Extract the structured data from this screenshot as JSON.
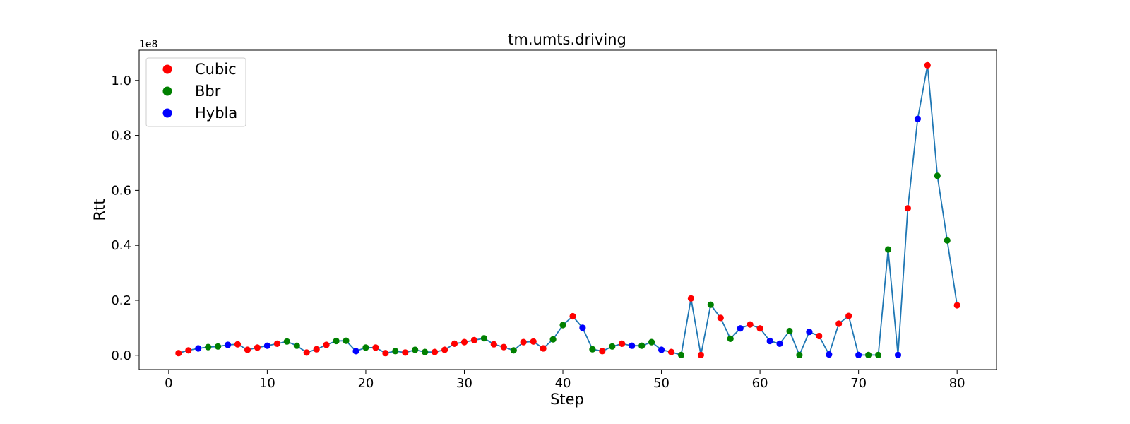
{
  "chart_data": {
    "type": "scatter",
    "title": "tm.umts.driving",
    "xlabel": "Step",
    "ylabel": "Rtt",
    "y_offset_label": "1e8",
    "xlim": [
      -3,
      84
    ],
    "ylim": [
      -0.052,
      1.11
    ],
    "x_ticks": [
      0,
      10,
      20,
      30,
      40,
      50,
      60,
      70,
      80
    ],
    "y_ticks": [
      0.0,
      0.2,
      0.4,
      0.6,
      0.8,
      1.0
    ],
    "y_tick_labels": [
      "0.0",
      "0.2",
      "0.4",
      "0.6",
      "0.8",
      "1.0"
    ],
    "y_unit_multiplier": 100000000,
    "grid": false,
    "legend_position": "top-left",
    "line_color": "#1f77b4",
    "series": [
      {
        "name": "Cubic",
        "color": "#ff0000"
      },
      {
        "name": "Bbr",
        "color": "#008000"
      },
      {
        "name": "Hybla",
        "color": "#0000ff"
      }
    ],
    "points": [
      {
        "x": 1,
        "y": 0.008,
        "s": "Cubic"
      },
      {
        "x": 2,
        "y": 0.018,
        "s": "Cubic"
      },
      {
        "x": 3,
        "y": 0.025,
        "s": "Hybla"
      },
      {
        "x": 4,
        "y": 0.03,
        "s": "Bbr"
      },
      {
        "x": 5,
        "y": 0.032,
        "s": "Bbr"
      },
      {
        "x": 6,
        "y": 0.038,
        "s": "Hybla"
      },
      {
        "x": 7,
        "y": 0.04,
        "s": "Cubic"
      },
      {
        "x": 8,
        "y": 0.02,
        "s": "Cubic"
      },
      {
        "x": 9,
        "y": 0.028,
        "s": "Cubic"
      },
      {
        "x": 10,
        "y": 0.035,
        "s": "Hybla"
      },
      {
        "x": 11,
        "y": 0.042,
        "s": "Cubic"
      },
      {
        "x": 12,
        "y": 0.05,
        "s": "Bbr"
      },
      {
        "x": 13,
        "y": 0.035,
        "s": "Bbr"
      },
      {
        "x": 14,
        "y": 0.01,
        "s": "Cubic"
      },
      {
        "x": 15,
        "y": 0.022,
        "s": "Cubic"
      },
      {
        "x": 16,
        "y": 0.038,
        "s": "Cubic"
      },
      {
        "x": 17,
        "y": 0.052,
        "s": "Bbr"
      },
      {
        "x": 18,
        "y": 0.053,
        "s": "Bbr"
      },
      {
        "x": 19,
        "y": 0.015,
        "s": "Hybla"
      },
      {
        "x": 20,
        "y": 0.028,
        "s": "Bbr"
      },
      {
        "x": 21,
        "y": 0.028,
        "s": "Cubic"
      },
      {
        "x": 22,
        "y": 0.008,
        "s": "Cubic"
      },
      {
        "x": 23,
        "y": 0.015,
        "s": "Bbr"
      },
      {
        "x": 24,
        "y": 0.01,
        "s": "Cubic"
      },
      {
        "x": 25,
        "y": 0.02,
        "s": "Bbr"
      },
      {
        "x": 26,
        "y": 0.012,
        "s": "Bbr"
      },
      {
        "x": 27,
        "y": 0.012,
        "s": "Cubic"
      },
      {
        "x": 28,
        "y": 0.02,
        "s": "Cubic"
      },
      {
        "x": 29,
        "y": 0.042,
        "s": "Cubic"
      },
      {
        "x": 30,
        "y": 0.048,
        "s": "Cubic"
      },
      {
        "x": 31,
        "y": 0.055,
        "s": "Cubic"
      },
      {
        "x": 32,
        "y": 0.062,
        "s": "Bbr"
      },
      {
        "x": 33,
        "y": 0.04,
        "s": "Cubic"
      },
      {
        "x": 34,
        "y": 0.03,
        "s": "Cubic"
      },
      {
        "x": 35,
        "y": 0.018,
        "s": "Bbr"
      },
      {
        "x": 36,
        "y": 0.048,
        "s": "Cubic"
      },
      {
        "x": 37,
        "y": 0.05,
        "s": "Cubic"
      },
      {
        "x": 38,
        "y": 0.025,
        "s": "Cubic"
      },
      {
        "x": 39,
        "y": 0.058,
        "s": "Bbr"
      },
      {
        "x": 40,
        "y": 0.11,
        "s": "Bbr"
      },
      {
        "x": 41,
        "y": 0.142,
        "s": "Cubic"
      },
      {
        "x": 42,
        "y": 0.1,
        "s": "Hybla"
      },
      {
        "x": 43,
        "y": 0.022,
        "s": "Bbr"
      },
      {
        "x": 44,
        "y": 0.015,
        "s": "Cubic"
      },
      {
        "x": 45,
        "y": 0.032,
        "s": "Bbr"
      },
      {
        "x": 46,
        "y": 0.042,
        "s": "Cubic"
      },
      {
        "x": 47,
        "y": 0.035,
        "s": "Hybla"
      },
      {
        "x": 48,
        "y": 0.035,
        "s": "Bbr"
      },
      {
        "x": 49,
        "y": 0.048,
        "s": "Bbr"
      },
      {
        "x": 50,
        "y": 0.02,
        "s": "Hybla"
      },
      {
        "x": 51,
        "y": 0.012,
        "s": "Cubic"
      },
      {
        "x": 52,
        "y": 0.001,
        "s": "Bbr"
      },
      {
        "x": 53,
        "y": 0.207,
        "s": "Cubic"
      },
      {
        "x": 54,
        "y": 0.001,
        "s": "Cubic"
      },
      {
        "x": 55,
        "y": 0.184,
        "s": "Bbr"
      },
      {
        "x": 56,
        "y": 0.136,
        "s": "Cubic"
      },
      {
        "x": 57,
        "y": 0.06,
        "s": "Bbr"
      },
      {
        "x": 58,
        "y": 0.098,
        "s": "Hybla"
      },
      {
        "x": 59,
        "y": 0.112,
        "s": "Cubic"
      },
      {
        "x": 60,
        "y": 0.098,
        "s": "Cubic"
      },
      {
        "x": 61,
        "y": 0.052,
        "s": "Hybla"
      },
      {
        "x": 62,
        "y": 0.042,
        "s": "Hybla"
      },
      {
        "x": 63,
        "y": 0.088,
        "s": "Bbr"
      },
      {
        "x": 64,
        "y": 0.001,
        "s": "Bbr"
      },
      {
        "x": 65,
        "y": 0.085,
        "s": "Hybla"
      },
      {
        "x": 66,
        "y": 0.07,
        "s": "Cubic"
      },
      {
        "x": 67,
        "y": 0.003,
        "s": "Hybla"
      },
      {
        "x": 68,
        "y": 0.115,
        "s": "Cubic"
      },
      {
        "x": 69,
        "y": 0.143,
        "s": "Cubic"
      },
      {
        "x": 70,
        "y": 0.001,
        "s": "Hybla"
      },
      {
        "x": 71,
        "y": 0.001,
        "s": "Bbr"
      },
      {
        "x": 72,
        "y": 0.001,
        "s": "Bbr"
      },
      {
        "x": 73,
        "y": 0.385,
        "s": "Bbr"
      },
      {
        "x": 74,
        "y": 0.001,
        "s": "Hybla"
      },
      {
        "x": 75,
        "y": 0.535,
        "s": "Cubic"
      },
      {
        "x": 76,
        "y": 0.86,
        "s": "Hybla"
      },
      {
        "x": 77,
        "y": 1.055,
        "s": "Cubic"
      },
      {
        "x": 78,
        "y": 0.653,
        "s": "Bbr"
      },
      {
        "x": 79,
        "y": 0.418,
        "s": "Bbr"
      },
      {
        "x": 80,
        "y": 0.182,
        "s": "Cubic"
      }
    ]
  }
}
